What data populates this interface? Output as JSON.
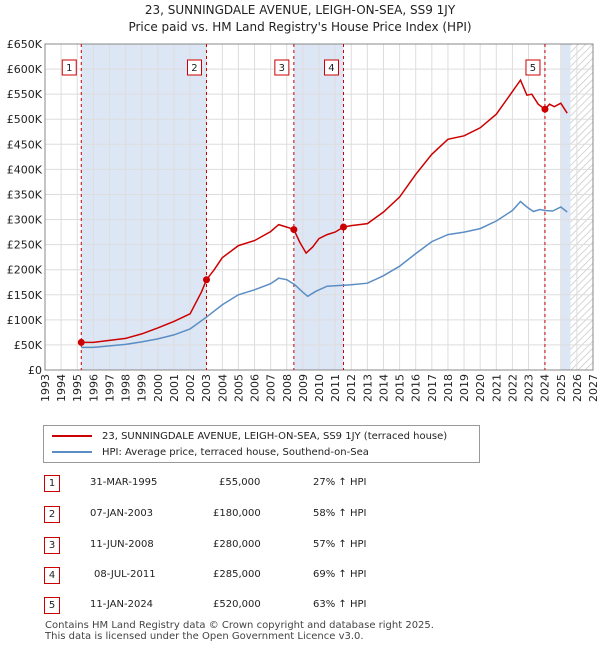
{
  "title_line1": "23, SUNNINGDALE AVENUE, LEIGH-ON-SEA, SS9 1JY",
  "title_line2": "Price paid vs. HM Land Registry's House Price Index (HPI)",
  "colors": {
    "property": "#cc0000",
    "hpi": "#5b8ec4",
    "shade": "#dde6f5",
    "grid": "#dddddd"
  },
  "chart_data": {
    "type": "line",
    "xlim": [
      1993,
      2027
    ],
    "ylim": [
      0,
      650000
    ],
    "y_ticks": [
      0,
      50000,
      100000,
      150000,
      200000,
      250000,
      300000,
      350000,
      400000,
      450000,
      500000,
      550000,
      600000,
      650000
    ],
    "y_tick_labels": [
      "£0",
      "£50K",
      "£100K",
      "£150K",
      "£200K",
      "£250K",
      "£300K",
      "£350K",
      "£400K",
      "£450K",
      "£500K",
      "£550K",
      "£600K",
      "£650K"
    ],
    "x_ticks": [
      "1993",
      "1994",
      "1995",
      "1996",
      "1997",
      "1998",
      "1999",
      "2000",
      "2001",
      "2002",
      "2003",
      "2004",
      "2005",
      "2006",
      "2007",
      "2008",
      "2009",
      "2010",
      "2011",
      "2012",
      "2013",
      "2014",
      "2015",
      "2016",
      "2017",
      "2018",
      "2019",
      "2020",
      "2021",
      "2022",
      "2023",
      "2024",
      "2025",
      "2026",
      "2027"
    ],
    "shaded_ranges": [
      [
        1995.25,
        2003.02
      ],
      [
        2008.44,
        2011.52
      ],
      [
        2025.0,
        2025.6
      ]
    ],
    "hatched_from": 2025.6,
    "series": [
      {
        "name": "23, SUNNINGDALE AVENUE, LEIGH-ON-SEA, SS9 1JY (terraced house)",
        "x": [
          1995.25,
          1996,
          1997,
          1998,
          1999,
          2000,
          2001,
          2002,
          2002.7,
          2003.02,
          2003.5,
          2004,
          2005,
          2006,
          2007,
          2007.5,
          2008.0,
          2008.44,
          2008.8,
          2009.2,
          2009.6,
          2010.0,
          2010.5,
          2011.0,
          2011.52,
          2012,
          2013,
          2014,
          2015,
          2016,
          2017,
          2018,
          2019,
          2020,
          2021,
          2022.0,
          2022.5,
          2022.9,
          2023.2,
          2023.6,
          2024.02,
          2024.3,
          2024.6,
          2025.0,
          2025.4
        ],
        "values": [
          55000,
          55000,
          59000,
          63000,
          72000,
          84000,
          97000,
          112000,
          155000,
          180000,
          200000,
          224000,
          248000,
          258000,
          276000,
          290000,
          285000,
          280000,
          255000,
          233000,
          245000,
          262000,
          270000,
          275000,
          285000,
          288000,
          292000,
          315000,
          345000,
          390000,
          430000,
          460000,
          467000,
          483000,
          510000,
          555000,
          578000,
          548000,
          550000,
          530000,
          520000,
          530000,
          525000,
          532000,
          512000
        ]
      },
      {
        "name": "HPI: Average price, terraced house, Southend-on-Sea",
        "x": [
          1995.25,
          1996,
          1997,
          1998,
          1999,
          2000,
          2001,
          2002,
          2003,
          2004,
          2005,
          2006,
          2007,
          2007.5,
          2008.0,
          2008.5,
          2009.0,
          2009.3,
          2009.8,
          2010.5,
          2011.0,
          2011.52,
          2012,
          2013,
          2014,
          2015,
          2016,
          2017,
          2018,
          2019,
          2020,
          2021,
          2022.0,
          2022.5,
          2022.9,
          2023.3,
          2023.7,
          2024.02,
          2024.5,
          2025.0,
          2025.4
        ],
        "values": [
          45000,
          45000,
          48000,
          51000,
          56000,
          62000,
          70000,
          82000,
          105000,
          130000,
          150000,
          160000,
          172000,
          183000,
          180000,
          170000,
          155000,
          147000,
          157000,
          167000,
          168000,
          169000,
          170000,
          173000,
          188000,
          207000,
          232000,
          256000,
          270000,
          275000,
          282000,
          297000,
          318000,
          336000,
          325000,
          316000,
          320000,
          318000,
          317000,
          325000,
          315000
        ]
      }
    ],
    "sales": [
      {
        "marker": "1",
        "x": 1995.25,
        "value": 55000
      },
      {
        "marker": "2",
        "x": 2003.02,
        "value": 180000
      },
      {
        "marker": "3",
        "x": 2008.44,
        "value": 280000
      },
      {
        "marker": "4",
        "x": 2011.52,
        "value": 285000
      },
      {
        "marker": "5",
        "x": 2024.02,
        "value": 520000
      }
    ]
  },
  "legend": {
    "property_label": "23, SUNNINGDALE AVENUE, LEIGH-ON-SEA, SS9 1JY (terraced house)",
    "hpi_label": "HPI: Average price, terraced house, Southend-on-Sea"
  },
  "transactions": [
    {
      "num": "1",
      "date": "31-MAR-1995",
      "price": "£55,000",
      "hpi": "27% ↑ HPI"
    },
    {
      "num": "2",
      "date": "07-JAN-2003",
      "price": "£180,000",
      "hpi": "58% ↑ HPI"
    },
    {
      "num": "3",
      "date": "11-JUN-2008",
      "price": "£280,000",
      "hpi": "57% ↑ HPI"
    },
    {
      "num": "4",
      "date": "08-JUL-2011",
      "price": "£285,000",
      "hpi": "69% ↑ HPI"
    },
    {
      "num": "5",
      "date": "11-JAN-2024",
      "price": "£520,000",
      "hpi": "63% ↑ HPI"
    }
  ],
  "footer": {
    "line1": "Contains HM Land Registry data © Crown copyright and database right 2025.",
    "line2": "This data is licensed under the Open Government Licence v3.0."
  }
}
